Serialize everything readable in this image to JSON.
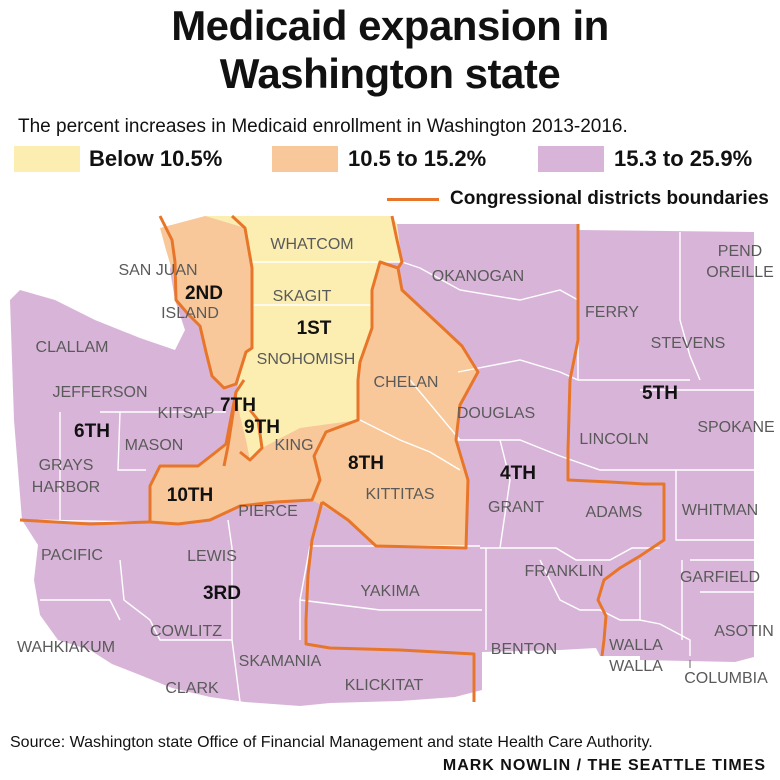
{
  "title_line1": "Medicaid expansion in",
  "title_line2": "Washington state",
  "subtitle": "The percent  increases in Medicaid enrollment in Washington 2013-2016.",
  "legend": [
    {
      "label": "Below 10.5%",
      "color": "#fbeeb0"
    },
    {
      "label": "10.5 to 15.2%",
      "color": "#f8c89a"
    },
    {
      "label": "15.3 to 25.9%",
      "color": "#d8b5d8"
    }
  ],
  "boundary_label": "Congressional districts boundaries",
  "boundary_color": "#e8762a",
  "counties": {
    "whatcom": "WHATCOM",
    "san_juan": "SAN JUAN",
    "island": "ISLAND",
    "skagit": "SKAGIT",
    "okanogan": "OKANOGAN",
    "ferry": "FERRY",
    "pend_oreille_1": "PEND",
    "pend_oreille_2": "OREILLE",
    "stevens": "STEVENS",
    "clallam": "CLALLAM",
    "snohomish": "SNOHOMISH",
    "chelan": "CHELAN",
    "jefferson": "JEFFERSON",
    "kitsap": "KITSAP",
    "douglas": "DOUGLAS",
    "mason": "MASON",
    "king": "KING",
    "lincoln": "LINCOLN",
    "spokane": "SPOKANE",
    "grays_harbor_1": "GRAYS",
    "grays_harbor_2": "HARBOR",
    "kittitas": "KITTITAS",
    "grant": "GRANT",
    "pierce": "PIERCE",
    "adams": "ADAMS",
    "whitman": "WHITMAN",
    "pacific": "PACIFIC",
    "lewis": "LEWIS",
    "franklin": "FRANKLIN",
    "garfield": "GARFIELD",
    "yakima": "YAKIMA",
    "wahkiakum": "WAHKIAKUM",
    "cowlitz": "COWLITZ",
    "benton": "BENTON",
    "walla_walla_1": "WALLA",
    "walla_walla_2": "WALLA",
    "asotin": "ASOTIN",
    "columbia": "COLUMBIA",
    "skamania": "SKAMANIA",
    "clark": "CLARK",
    "klickitat": "KLICKITAT"
  },
  "districts": {
    "d1": "1ST",
    "d2": "2ND",
    "d3": "3RD",
    "d4": "4TH",
    "d5": "5TH",
    "d6": "6TH",
    "d7": "7TH",
    "d8": "8TH",
    "d9": "9TH",
    "d10": "10TH"
  },
  "source": "Source: Washington state Office of Financial Management and state Health Care Authority.",
  "credit": "MARK NOWLIN / THE SEATTLE TIMES"
}
